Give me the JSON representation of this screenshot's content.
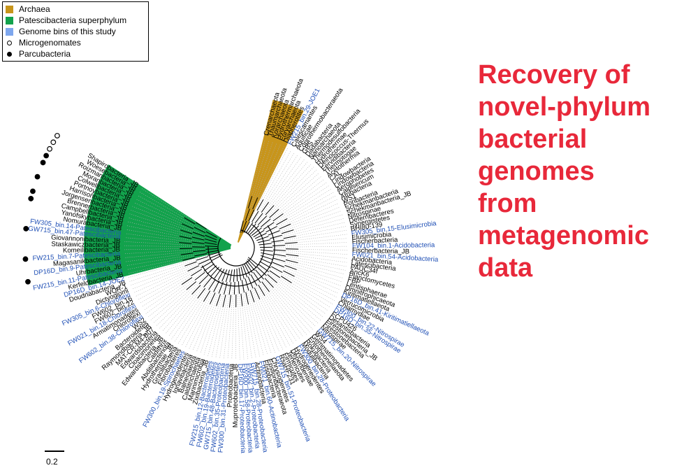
{
  "legend": {
    "archaea": "Archaea",
    "patescibacteria": "Patescibacteria superphylum",
    "genome_bins": "Genome bins of this study",
    "microgenomates": "Microgenomates",
    "parcubacteria": "Parcubacteria"
  },
  "colors": {
    "archaea": "#c8951b",
    "patescibacteria": "#12a24c",
    "genome_bins": "#7ea7ee",
    "genome_bin_text": "#1f4fb5",
    "headline": "#e8283a"
  },
  "headline": {
    "line1": "Recovery of",
    "line2": "novel-phylum",
    "line3": "bacterial",
    "line4": "genomes",
    "line5": "from",
    "line6": "metagenomic",
    "line7": "data"
  },
  "scale_bar": {
    "label": "0.2"
  },
  "tree": {
    "leaves": [
      {
        "label": "Crenarchaeota",
        "group": "archaea"
      },
      {
        "label": "Thaumarchaeota",
        "group": "archaea"
      },
      {
        "label": "Korarchaeota",
        "group": "archaea"
      },
      {
        "label": "Hydrothermarchaeota",
        "group": "archaea"
      },
      {
        "label": "Euryarchaeota",
        "group": "archaea"
      },
      {
        "label": "Diapherotites",
        "group": "archaea"
      },
      {
        "label": "FW215_bin.29-JOE1",
        "bin": true
      },
      {
        "label": "Calescamantes"
      },
      {
        "label": "Aquificae"
      },
      {
        "label": "Coprothermobacteraeota"
      },
      {
        "label": "GBS"
      },
      {
        "label": "Dadabacteria"
      },
      {
        "label": "Nanoarchaeota"
      },
      {
        "label": "Thermodesulfobacteria"
      },
      {
        "label": "Hydrothermae"
      },
      {
        "label": "Deinococcus-Thermus"
      },
      {
        "label": "Fervidibacteria"
      },
      {
        "label": "Thermotogae"
      },
      {
        "label": "Acetothermia"
      },
      {
        "label": "CAL"
      },
      {
        "label": "Lindowbacteria"
      },
      {
        "label": "Lindowbacteria"
      },
      {
        "label": "Aerophobetes"
      },
      {
        "label": "Caldisericum"
      },
      {
        "label": "Atribacteria"
      },
      {
        "label": "WS1"
      },
      {
        "label": "Poribacteria"
      },
      {
        "label": "Schekmanbacteria"
      },
      {
        "label": "Schekmanbacteria_JB"
      },
      {
        "label": "Nitrospinae"
      },
      {
        "label": "Deferribacteres"
      },
      {
        "label": "Synergistetes"
      },
      {
        "label": "BHI80-139"
      },
      {
        "label": "FW305_bin.15-Elusimicrobia",
        "bin": true
      },
      {
        "label": "Elusimicrobia"
      },
      {
        "label": "Fischerbacteria"
      },
      {
        "label": "FW104_bin.1-Acidobacteria",
        "bin": true
      },
      {
        "label": "Fischerbacteria_JB"
      },
      {
        "label": "FW021_bin.54-Acidobacteria",
        "bin": true
      },
      {
        "label": "Acidobacteria"
      },
      {
        "label": "Latescibacteria"
      },
      {
        "label": "PAUC34f"
      },
      {
        "label": "AncK6"
      },
      {
        "label": "Planctomycetes"
      },
      {
        "label": "FBP"
      },
      {
        "label": "Lentisphaerae"
      },
      {
        "label": "Omnitrophicaeota"
      },
      {
        "label": "Kiritimatiellaeota"
      },
      {
        "label": "DP16D_bin.41-Kiritimatiellaeota",
        "bin": true
      },
      {
        "label": "Verrucomicrobia"
      },
      {
        "label": "Chlamydiae"
      },
      {
        "label": "FW300_bin.22-Nitrospirae",
        "bin": true
      },
      {
        "label": "DP16D_bin.35-Nitrospirae",
        "bin": true
      },
      {
        "label": "FCPU426"
      },
      {
        "label": "Desantisbacteria"
      },
      {
        "label": "Firestonebacteria_JB"
      },
      {
        "label": "Firestonebacteria"
      },
      {
        "label": "Nitrospirae"
      },
      {
        "label": "GW715_bin.20-Nitrospirae",
        "bin": true
      },
      {
        "label": "WS4"
      },
      {
        "label": "Gemmatimonadetes"
      },
      {
        "label": "Entotheonellaeota"
      },
      {
        "label": "Rokubacteria"
      },
      {
        "label": "Modulibacteria"
      },
      {
        "label": "FW300_bin.28-Proteobacteria",
        "bin": true
      },
      {
        "label": "Hydrogenedentes"
      },
      {
        "label": "Dependentiae"
      },
      {
        "label": "Tenericutes"
      },
      {
        "label": "Firmicutes"
      },
      {
        "label": "RsaHF231"
      },
      {
        "label": "GW715_bin.51-Proteobacteria",
        "bin": true
      },
      {
        "label": "Chrysiogenetes"
      },
      {
        "label": "Epsilonbacteraeota"
      },
      {
        "label": "Fusobacteria"
      },
      {
        "label": "FW021_bin.60-Actinobacteria",
        "bin": true
      },
      {
        "label": "Actinobacteria"
      },
      {
        "label": "GW715_bin.28-Proteobacteria",
        "bin": true
      },
      {
        "label": "FW602_bin.2-Proteobacteria",
        "bin": true
      },
      {
        "label": "FW300_bin.58-Proteobacteria",
        "bin": true
      },
      {
        "label": "DP16D_bin.17-Proteobacteria",
        "bin": true
      },
      {
        "label": "Muproteobacteria_JB"
      },
      {
        "label": "Proteobacteria"
      },
      {
        "label": "FW300_bin.31-Proteobacteria",
        "bin": true
      },
      {
        "label": "FW602_bin.35-Proteobacteria",
        "bin": true
      },
      {
        "label": "GW715_bin.48-Bacteroidetes",
        "bin": true
      },
      {
        "label": "FW602_bin.19-Bacteroidetes",
        "bin": true
      },
      {
        "label": "FW215_bin.12-Bacteroidetes",
        "bin": true
      },
      {
        "label": "Zixibacteria_JB"
      },
      {
        "label": "Marinimicrobia"
      },
      {
        "label": "Calditrichaeota"
      },
      {
        "label": "Balneolaeota"
      },
      {
        "label": "Ignavibacteria"
      },
      {
        "label": "Hydrogenedentes"
      },
      {
        "label": "FW300_bin.19-Spirochaetes",
        "bin": true
      },
      {
        "label": "Fibrobacteres"
      },
      {
        "label": "Gracilibacteria"
      },
      {
        "label": "Hydrothermae_JB"
      },
      {
        "label": "Abditibacteriota"
      },
      {
        "label": "Caldithrix"
      },
      {
        "label": "Edwardsbacteria_JB"
      },
      {
        "label": "Cloacimonetes"
      },
      {
        "label": "Edwardsbacteria"
      },
      {
        "label": "MAT-CR-M4-B07"
      },
      {
        "label": "Raymondbacteria_JB"
      },
      {
        "label": "Bacteroidetes"
      },
      {
        "label": "WS2"
      },
      {
        "label": "FW602_bin.38-Chloroflexi",
        "bin": true
      },
      {
        "label": "Chloroflexi"
      },
      {
        "label": "Armatimonadetes"
      },
      {
        "label": "FW021_bin.18-Chloroflexi",
        "bin": true
      },
      {
        "label": "FW602_bin.22"
      },
      {
        "label": "FW602_bin.16"
      },
      {
        "label": "FW305_bin.6-Chloroflexi",
        "bin": true
      },
      {
        "label": "Dictyoglomi"
      },
      {
        "label": "WOR-1"
      },
      {
        "label": "Doudnabacteria_JB"
      },
      {
        "label": "DP16D_bin.14-JOE2",
        "bin": true
      },
      {
        "label": "Kerfeldbacteria_JB",
        "group": "pates"
      },
      {
        "label": "FW215_bin.11-Patescibacteria",
        "bin": true,
        "group": "pates"
      },
      {
        "label": "Uhrbacteria_JB",
        "group": "pates",
        "marker": "filled"
      },
      {
        "label": "DP16D_bin.9-Patescibacteria",
        "bin": true,
        "group": "pates"
      },
      {
        "label": "Magasanikbacteria_JB",
        "group": "pates"
      },
      {
        "label": "FW215_bin.7-Patescibacteria",
        "bin": true,
        "group": "pates",
        "marker": "filled"
      },
      {
        "label": "Komeilibacteria_JB",
        "group": "pates"
      },
      {
        "label": "Staskawiczbacteria_JB",
        "group": "pates"
      },
      {
        "label": "Giovannonibacteria_JB",
        "group": "pates"
      },
      {
        "label": "GW715_bin.47-Patescibacteria",
        "bin": true,
        "group": "pates",
        "marker": "filled"
      },
      {
        "label": "FW305_bin.14-Patescibacteria",
        "bin": true,
        "group": "pates"
      },
      {
        "label": "Nomurabacteria_JB",
        "group": "pates"
      },
      {
        "label": "Yanofskybacteria_JB",
        "group": "pates"
      },
      {
        "label": "Campbellbacteria_JB",
        "group": "pates",
        "marker": "filled"
      },
      {
        "label": "Brennerbacteria_JB",
        "group": "pates",
        "marker": "filled"
      },
      {
        "label": "Jorgensenbacteria_JB",
        "group": "pates"
      },
      {
        "label": "Harrisonbacteria_JB",
        "group": "pates",
        "marker": "filled"
      },
      {
        "label": "Portnoybacteria_JB",
        "group": "pates"
      },
      {
        "label": "Colwellbacteria_JB",
        "group": "pates",
        "marker": "filled"
      },
      {
        "label": "Moranbacteria_JB",
        "group": "pates",
        "marker": "filled"
      },
      {
        "label": "Roizmanbacteria_JB",
        "group": "pates",
        "marker": "open"
      },
      {
        "label": "Woesebacteria_JB",
        "group": "pates",
        "marker": "open"
      },
      {
        "label": "Shapirobacteria_JB",
        "group": "pates",
        "marker": "open"
      }
    ]
  }
}
